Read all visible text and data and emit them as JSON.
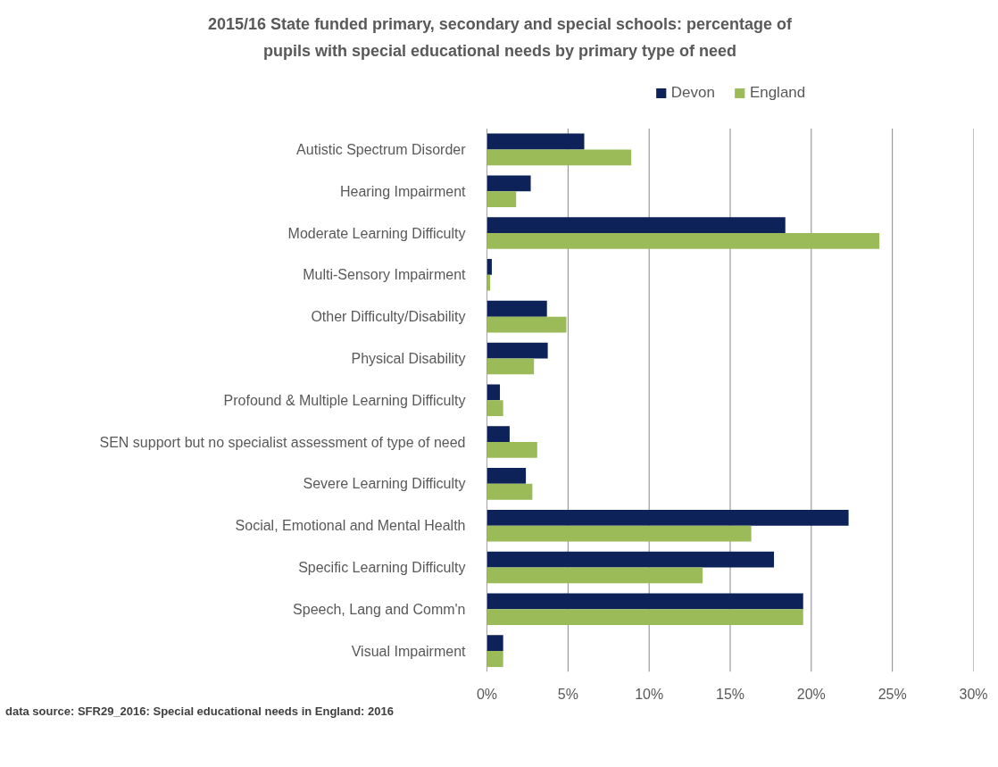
{
  "chart_data": {
    "type": "bar",
    "orientation": "horizontal",
    "title": "2015/16 State funded primary, secondary and special schools: percentage of pupils with special educational needs by primary type of need",
    "categories": [
      "Autistic Spectrum Disorder",
      "Hearing Impairment",
      "Moderate Learning Difficulty",
      "Multi-Sensory Impairment",
      "Other Difficulty/Disability",
      "Physical Disability",
      "Profound & Multiple Learning Difficulty",
      "SEN support but no specialist assessment of type of need",
      "Severe Learning Difficulty",
      "Social, Emotional and Mental Health",
      "Specific Learning Difficulty",
      "Speech, Lang and Comm'n",
      "Visual Impairment"
    ],
    "series": [
      {
        "name": "Devon",
        "color": "#0d2259",
        "values": [
          6.0,
          2.7,
          18.4,
          0.3,
          3.7,
          3.75,
          0.8,
          1.4,
          2.4,
          22.3,
          17.7,
          19.5,
          1.0
        ]
      },
      {
        "name": "England",
        "color": "#9bbb59",
        "values": [
          8.9,
          1.8,
          24.2,
          0.2,
          4.9,
          2.9,
          1.0,
          3.1,
          2.8,
          16.3,
          13.3,
          19.5,
          1.0
        ]
      }
    ],
    "xlim": [
      0,
      30
    ],
    "xticks": [
      {
        "value": 0,
        "label": "0%"
      },
      {
        "value": 5,
        "label": "5%"
      },
      {
        "value": 10,
        "label": "10%"
      },
      {
        "value": 15,
        "label": "15%"
      },
      {
        "value": 20,
        "label": "20%"
      },
      {
        "value": 25,
        "label": "25%"
      },
      {
        "value": 30,
        "label": "30%"
      }
    ],
    "grid": "x",
    "legend": "top",
    "annotations": [
      "data source: SFR29_2016: Special educational needs in England:  2016"
    ]
  }
}
